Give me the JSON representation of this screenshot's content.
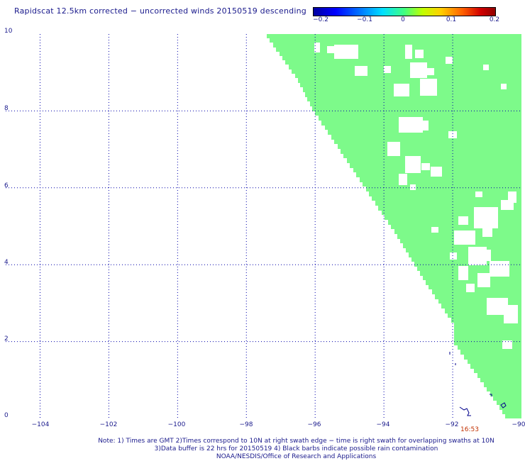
{
  "title": "Rapidscat 12.5km corrected − uncorrected winds 20150519 descending",
  "colorbar": {
    "ticks": [
      "−0.2",
      "−0.1",
      "0",
      "0.1",
      "0.2"
    ],
    "colors": [
      "#0000a0",
      "#0000ff",
      "#00e0ff",
      "#40ff80",
      "#ffd000",
      "#ff6000",
      "#900000"
    ]
  },
  "axes": {
    "lon_ticks": [
      "−104",
      "−102",
      "−100",
      "−98",
      "−96",
      "−94",
      "−92",
      "−90"
    ],
    "lat_ticks": [
      "10",
      "8",
      "6",
      "4",
      "2",
      "0"
    ],
    "lon_range": [
      -105,
      -90
    ],
    "lat_range": [
      0,
      10
    ],
    "grid": true,
    "grid_color": "#0000aa"
  },
  "swath": {
    "fill_color": "#7dfa8a",
    "value": 0,
    "time_label": "16:53"
  },
  "notes": {
    "line1": "Note: 1) Times are GMT 2)Times correspond to 10N at right swath edge − time is right swath for overlapping swaths at 10N",
    "line2": "3)Data buffer is 22 hrs for 20150519 4) Black barbs indicate possible rain contamination",
    "line3": "NOAA/NESDIS/Office of Research and Applications"
  }
}
